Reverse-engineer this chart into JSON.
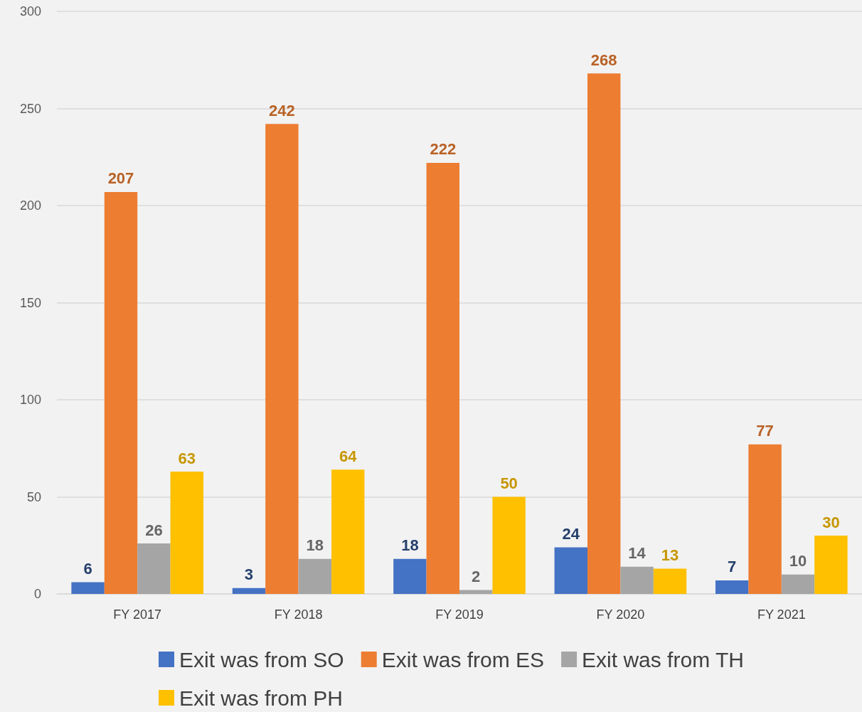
{
  "chart_data": {
    "type": "bar",
    "categories": [
      "FY 2017",
      "FY 2018",
      "FY 2019",
      "FY 2020",
      "FY 2021"
    ],
    "series": [
      {
        "name": "Exit was from SO",
        "color": "#4472c4",
        "values": [
          6,
          3,
          18,
          24,
          7
        ]
      },
      {
        "name": "Exit was from ES",
        "color": "#ed7d31",
        "values": [
          207,
          242,
          222,
          268,
          77
        ]
      },
      {
        "name": "Exit was from TH",
        "color": "#a5a5a5",
        "values": [
          26,
          18,
          2,
          14,
          10
        ]
      },
      {
        "name": "Exit was from PH",
        "color": "#ffc000",
        "values": [
          63,
          64,
          50,
          13,
          30
        ]
      }
    ],
    "ylim": [
      0,
      300
    ],
    "yticks": [
      0,
      50,
      100,
      150,
      200,
      250,
      300
    ],
    "grid": "y",
    "legend": "bottom",
    "data_labels": true
  }
}
